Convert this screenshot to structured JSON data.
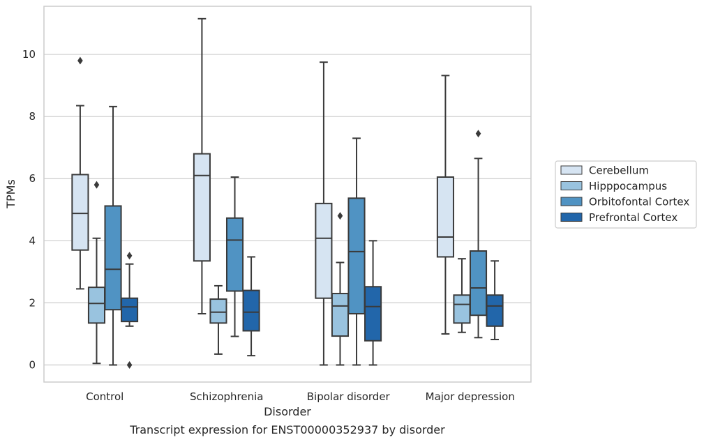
{
  "chart_data": {
    "type": "box",
    "xlabel": "Disorder",
    "ylabel": "TPMs",
    "caption": "Transcript expression for ENST00000352937 by disorder",
    "ylim": [
      -0.55,
      11.55
    ],
    "yticks": [
      "0",
      "2",
      "4",
      "6",
      "8",
      "10"
    ],
    "grid": "horizontal",
    "legend_position": "right",
    "categories": [
      "Control",
      "Schizophrenia",
      "Bipolar disorder",
      "Major depression"
    ],
    "series": [
      {
        "name": "Cerebellum",
        "color": "#d6e4f2",
        "boxes": [
          {
            "whislo": 2.45,
            "q1": 3.7,
            "med": 4.88,
            "q3": 6.13,
            "whishi": 8.35,
            "fliers": [
              9.8
            ]
          },
          {
            "whislo": 1.65,
            "q1": 3.35,
            "med": 6.1,
            "q3": 6.8,
            "whishi": 11.15,
            "fliers": []
          },
          {
            "whislo": 0.0,
            "q1": 2.15,
            "med": 4.08,
            "q3": 5.2,
            "whishi": 9.75,
            "fliers": []
          },
          {
            "whislo": 1.0,
            "q1": 3.48,
            "med": 4.12,
            "q3": 6.05,
            "whishi": 9.32,
            "fliers": []
          }
        ]
      },
      {
        "name": "Hipppocampus",
        "color": "#99c3df",
        "boxes": [
          {
            "whislo": 0.05,
            "q1": 1.35,
            "med": 1.98,
            "q3": 2.5,
            "whishi": 4.08,
            "fliers": [
              5.8
            ]
          },
          {
            "whislo": 0.35,
            "q1": 1.35,
            "med": 1.7,
            "q3": 2.12,
            "whishi": 2.55,
            "fliers": []
          },
          {
            "whislo": 0.0,
            "q1": 0.93,
            "med": 1.9,
            "q3": 2.3,
            "whishi": 3.3,
            "fliers": [
              4.8
            ]
          },
          {
            "whislo": 1.05,
            "q1": 1.35,
            "med": 1.95,
            "q3": 2.25,
            "whishi": 3.42,
            "fliers": []
          }
        ]
      },
      {
        "name": "Orbitofontal Cortex",
        "color": "#5093c3",
        "boxes": [
          {
            "whislo": 0.0,
            "q1": 1.78,
            "med": 3.08,
            "q3": 5.12,
            "whishi": 8.32,
            "fliers": []
          },
          {
            "whislo": 0.92,
            "q1": 2.38,
            "med": 4.02,
            "q3": 4.73,
            "whishi": 6.05,
            "fliers": []
          },
          {
            "whislo": 0.0,
            "q1": 1.65,
            "med": 3.65,
            "q3": 5.37,
            "whishi": 7.3,
            "fliers": []
          },
          {
            "whislo": 0.88,
            "q1": 1.6,
            "med": 2.48,
            "q3": 3.67,
            "whishi": 6.65,
            "fliers": [
              7.45
            ]
          }
        ]
      },
      {
        "name": "Prefrontal Cortex",
        "color": "#2266aa",
        "boxes": [
          {
            "whislo": 1.25,
            "q1": 1.4,
            "med": 1.87,
            "q3": 2.15,
            "whishi": 3.25,
            "fliers": [
              3.52,
              0.0
            ]
          },
          {
            "whislo": 0.3,
            "q1": 1.1,
            "med": 1.7,
            "q3": 2.4,
            "whishi": 3.48,
            "fliers": []
          },
          {
            "whislo": 0.0,
            "q1": 0.78,
            "med": 1.88,
            "q3": 2.52,
            "whishi": 4.0,
            "fliers": []
          },
          {
            "whislo": 0.82,
            "q1": 1.25,
            "med": 1.9,
            "q3": 2.25,
            "whishi": 3.35,
            "fliers": []
          }
        ]
      }
    ]
  }
}
